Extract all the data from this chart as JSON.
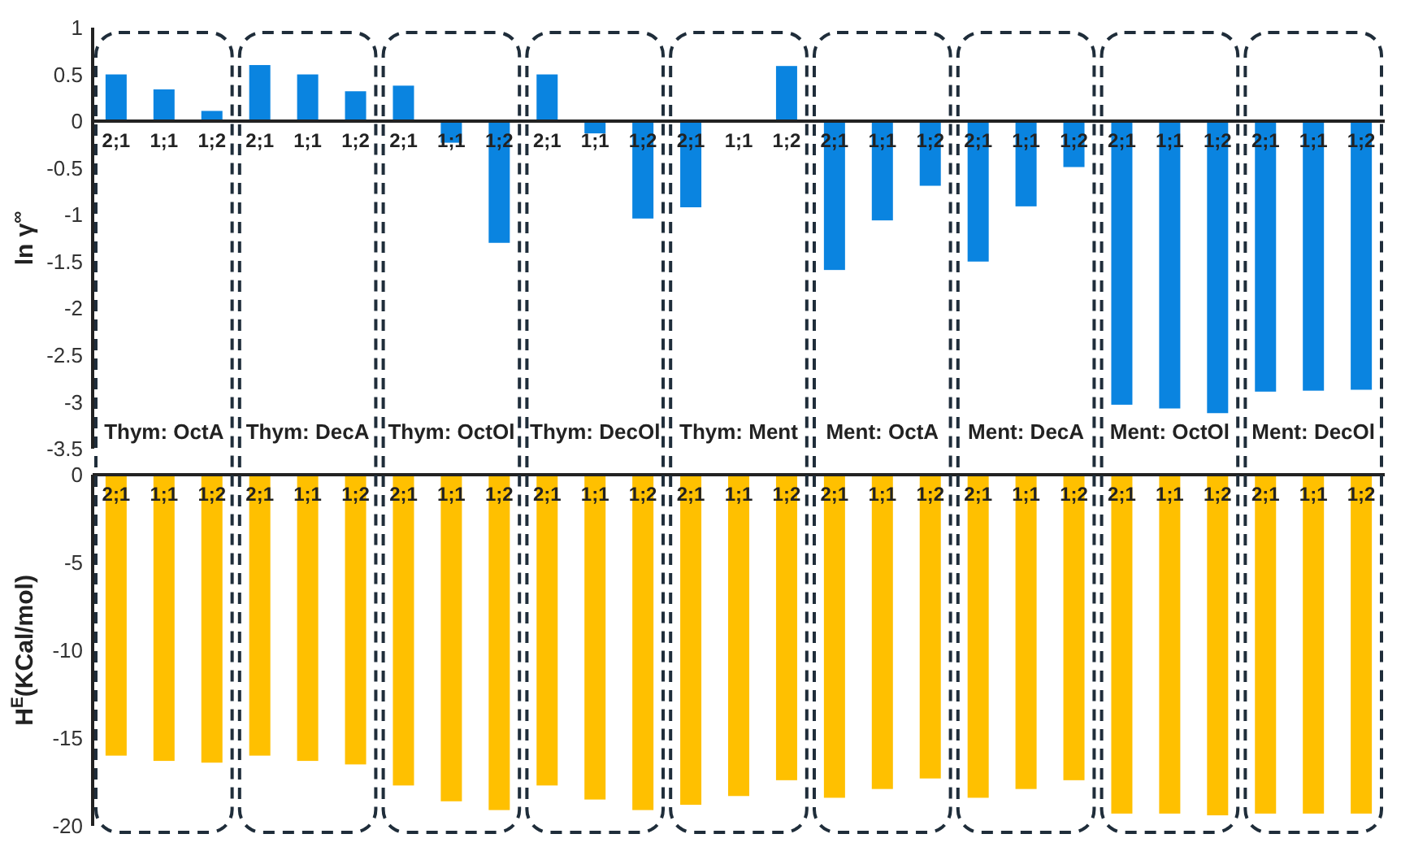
{
  "chart_data": [
    {
      "type": "bar",
      "ylabel": "ln γ$^{∞}$",
      "categories": [
        "2;1",
        "1;1",
        "1;2",
        "2;1",
        "1;1",
        "1;2",
        "2;1",
        "1;1",
        "1;2",
        "2;1",
        "1;1",
        "1;2",
        "2;1",
        "1;1",
        "1;2",
        "2;1",
        "1;1",
        "1;2",
        "2;1",
        "1;1",
        "1;2",
        "2;1",
        "1;1",
        "1;2",
        "2;1",
        "1;1",
        "1;2"
      ],
      "series": [
        {
          "color": "#0a84e0",
          "values": [
            0.5,
            0.34,
            0.11,
            0.6,
            0.5,
            0.32,
            0.38,
            -0.23,
            -1.3,
            0.5,
            -0.13,
            -1.04,
            -0.92,
            0,
            0.59,
            -1.59,
            -1.06,
            -0.69,
            -1.5,
            -0.91,
            -0.49,
            -3.03,
            -3.07,
            -3.12,
            -2.89,
            -2.88,
            -2.87
          ]
        }
      ],
      "ylim": [
        -3.5,
        1
      ],
      "yticks": [
        -3.5,
        -3,
        -2.5,
        -2,
        -1.5,
        -1,
        -0.5,
        0,
        0.5,
        1
      ],
      "grid": false,
      "annotations": [
        "Thym: OctA",
        "Thym: DecA",
        "Thym: OctOl",
        "Thym: DecOl",
        "Thym: Ment",
        "Ment: OctA",
        "Ment: DecA",
        "Ment: OctOl",
        "Ment: DecOl"
      ]
    },
    {
      "type": "bar",
      "ylabel": "H$^{E}$(KCal/mol)",
      "categories": [
        "2;1",
        "1;1",
        "1;2",
        "2;1",
        "1;1",
        "1;2",
        "2;1",
        "1;1",
        "1;2",
        "2;1",
        "1;1",
        "1;2",
        "2;1",
        "1;1",
        "1;2",
        "2;1",
        "1;1",
        "1;2",
        "2;1",
        "1;1",
        "1;2",
        "2;1",
        "1;1",
        "1;2",
        "2;1",
        "1;1",
        "1;2"
      ],
      "series": [
        {
          "color": "#ffc000",
          "values": [
            -16.0,
            -16.3,
            -16.4,
            -16.0,
            -16.3,
            -16.5,
            -17.7,
            -18.6,
            -19.1,
            -17.7,
            -18.5,
            -19.1,
            -18.8,
            -18.3,
            -17.4,
            -18.4,
            -17.9,
            -17.3,
            -18.4,
            -17.9,
            -17.4,
            -19.3,
            -19.3,
            -19.4,
            -19.3,
            -19.3,
            -19.3
          ]
        }
      ],
      "ylim": [
        -20,
        0
      ],
      "yticks": [
        -20,
        -15,
        -10,
        -5,
        0
      ],
      "grid": false
    }
  ]
}
